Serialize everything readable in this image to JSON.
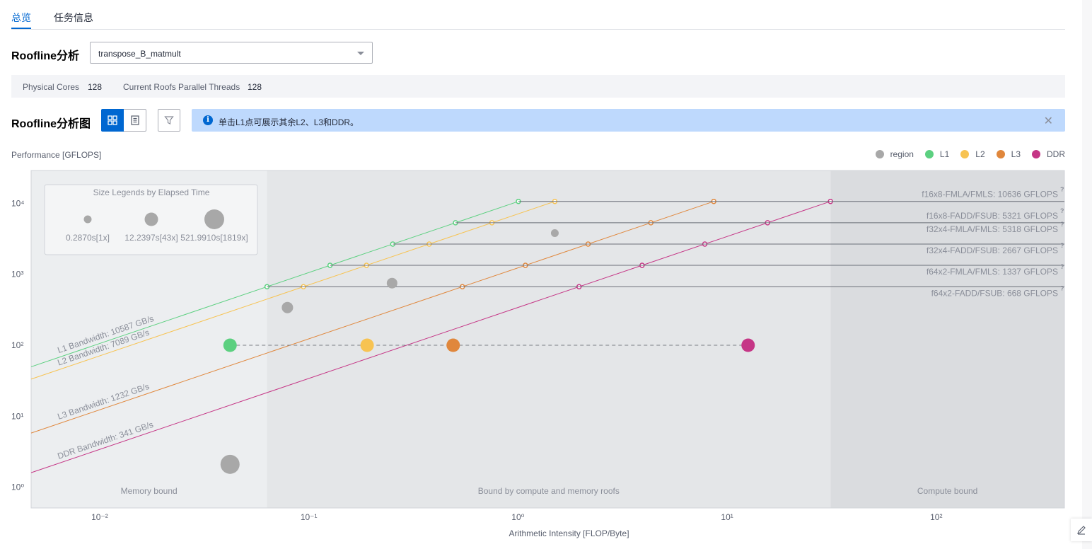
{
  "tabs": [
    {
      "label": "总览"
    },
    {
      "label": "任务信息"
    }
  ],
  "roofline": {
    "title": "Roofline分析",
    "select_value": "transpose_B_matmult",
    "chart_title": "Roofline分析图"
  },
  "info_strip": {
    "physical_cores_label": "Physical Cores",
    "physical_cores_value": "128",
    "threads_label": "Current Roofs Parallel Threads",
    "threads_value": "128"
  },
  "alert": {
    "text": "单击L1点可展示其余L2、L3和DDR。",
    "close": "✕"
  },
  "colors": {
    "accent": "#0067d1",
    "region": "#a8a8a8",
    "L1": "#5cd080",
    "L2": "#f7c352",
    "L3": "#e0873c",
    "DDR": "#c53686"
  },
  "chart_data": {
    "type": "scatter",
    "subtype": "roofline",
    "ylabel": "Performance [GFLOPS]",
    "xlabel": "Arithmetic Intensity [FLOP/Byte]",
    "x_scale": "log",
    "y_scale": "log",
    "xlim": [
      0.0047,
      410
    ],
    "ylim": [
      0.51,
      29000
    ],
    "x_ticks": [
      {
        "v": 0.01,
        "label": "10⁻²"
      },
      {
        "v": 0.1,
        "label": "10⁻¹"
      },
      {
        "v": 1,
        "label": "10⁰"
      },
      {
        "v": 10,
        "label": "10¹"
      },
      {
        "v": 100,
        "label": "10²"
      }
    ],
    "y_ticks": [
      {
        "v": 1,
        "label": "10⁰"
      },
      {
        "v": 10,
        "label": "10¹"
      },
      {
        "v": 100,
        "label": "10²"
      },
      {
        "v": 1000,
        "label": "10³"
      },
      {
        "v": 10000,
        "label": "10⁴"
      }
    ],
    "legend": [
      {
        "name": "region",
        "color": "#a8a8a8"
      },
      {
        "name": "L1",
        "color": "#5cd080"
      },
      {
        "name": "L2",
        "color": "#f7c352"
      },
      {
        "name": "L3",
        "color": "#e0873c"
      },
      {
        "name": "DDR",
        "color": "#c53686"
      }
    ],
    "bandwidths": [
      {
        "label": "L1 Bandwidth: 10587 GB/s",
        "bw": 10587,
        "color": "#5cd080"
      },
      {
        "label": "L2 Bandwidth: 7089 GB/s",
        "bw": 7089,
        "color": "#f7c352"
      },
      {
        "label": "L3 Bandwidth: 1232 GB/s",
        "bw": 1232,
        "color": "#e0873c"
      },
      {
        "label": "DDR Bandwidth: 341 GB/s",
        "bw": 341,
        "color": "#c53686"
      }
    ],
    "compute_roofs": [
      {
        "label": "f16x8-FMLA/FMLS: 10636 GFLOPS",
        "value": 10636
      },
      {
        "label": "f16x8-FADD/FSUB: 5321 GFLOPS",
        "value": 5321
      },
      {
        "label": "f32x4-FMLA/FMLS: 5318 GFLOPS",
        "value": 5318
      },
      {
        "label": "f32x4-FADD/FSUB: 2667 GFLOPS",
        "value": 2667
      },
      {
        "label": "f64x2-FMLA/FMLS: 1337 GFLOPS",
        "value": 1337
      },
      {
        "label": "f64x2-FADD/FSUB: 668 GFLOPS",
        "value": 668
      }
    ],
    "roof_values_drawn": [
      10636,
      5321,
      2667,
      1337,
      668
    ],
    "regions": [
      {
        "label": "Memory bound",
        "x_range": [
          0.0047,
          0.063
        ]
      },
      {
        "label": "Bound by compute and memory roofs",
        "x_range": [
          0.063,
          31.2
        ]
      },
      {
        "label": "Compute bound",
        "x_range": [
          31.2,
          410
        ]
      }
    ],
    "size_legend": {
      "title": "Size Legends by Elapsed Time",
      "items": [
        {
          "label": "0.2870s[1x]",
          "size": 1
        },
        {
          "label": "12.2397s[43x]",
          "size": 43
        },
        {
          "label": "521.9910s[1819x]",
          "size": 1819
        }
      ]
    },
    "points": [
      {
        "series": "region",
        "x": 1.5,
        "y": 3800,
        "size": 1
      },
      {
        "series": "region",
        "x": 0.25,
        "y": 750,
        "size": 18
      },
      {
        "series": "region",
        "x": 0.079,
        "y": 340,
        "size": 14
      },
      {
        "series": "region",
        "x": 0.042,
        "y": 2.1,
        "size": 60
      },
      {
        "series": "L1",
        "x": 0.042,
        "y": 100,
        "size": 30
      },
      {
        "series": "L2",
        "x": 0.19,
        "y": 100,
        "size": 30
      },
      {
        "series": "L3",
        "x": 0.49,
        "y": 100,
        "size": 30
      },
      {
        "series": "DDR",
        "x": 12.6,
        "y": 100,
        "size": 30
      }
    ]
  }
}
